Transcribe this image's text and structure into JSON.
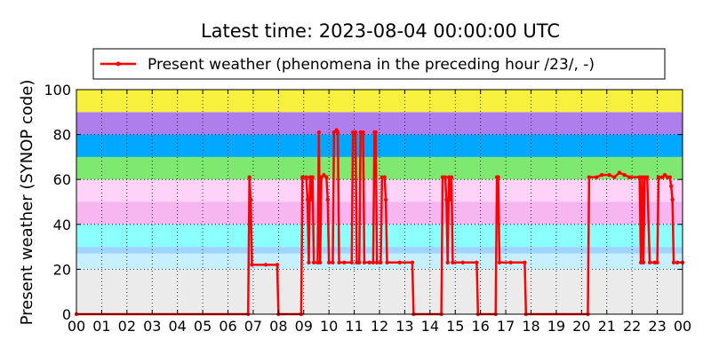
{
  "chart_data": {
    "type": "line",
    "title": "Latest time: 2023-08-04 00:00:00 UTC",
    "ylabel": "Present weather (SYNOP code)",
    "xlabel": "",
    "x_tick_labels": [
      "00",
      "01",
      "02",
      "03",
      "04",
      "05",
      "06",
      "07",
      "08",
      "09",
      "10",
      "11",
      "12",
      "13",
      "14",
      "15",
      "16",
      "17",
      "18",
      "19",
      "20",
      "21",
      "22",
      "23",
      "00"
    ],
    "y_ticks": [
      0,
      20,
      40,
      60,
      80,
      100
    ],
    "ylim": [
      0,
      100
    ],
    "xlim": [
      0,
      24
    ],
    "x_unit": "hours UTC",
    "grid": true,
    "legend_placement": "top-center",
    "line_color": "#ff0000",
    "bands": [
      {
        "from": 0,
        "to": 20,
        "color": "#ebebeb"
      },
      {
        "from": 20,
        "to": 27,
        "color": "#c6f0ff"
      },
      {
        "from": 27,
        "to": 30,
        "color": "#9ed6ff"
      },
      {
        "from": 30,
        "to": 40,
        "color": "#8cffff"
      },
      {
        "from": 40,
        "to": 50,
        "color": "#f7b6ef"
      },
      {
        "from": 50,
        "to": 60,
        "color": "#ffd2fa"
      },
      {
        "from": 60,
        "to": 70,
        "color": "#7ee870"
      },
      {
        "from": 70,
        "to": 80,
        "color": "#00a8ff"
      },
      {
        "from": 80,
        "to": 90,
        "color": "#ae7eed"
      },
      {
        "from": 90,
        "to": 100,
        "color": "#f7f03c"
      }
    ],
    "series": [
      {
        "name": "Present weather (phenomena in the preceding hour /23/, -)",
        "points": [
          [
            0,
            0
          ],
          [
            6.8,
            0
          ],
          [
            6.85,
            61
          ],
          [
            6.9,
            51
          ],
          [
            6.95,
            22
          ],
          [
            7.5,
            22
          ],
          [
            7.95,
            22
          ],
          [
            8.0,
            0
          ],
          [
            8.9,
            0
          ],
          [
            8.95,
            61
          ],
          [
            9.1,
            61
          ],
          [
            9.15,
            51
          ],
          [
            9.2,
            23
          ],
          [
            9.25,
            61
          ],
          [
            9.3,
            51
          ],
          [
            9.35,
            61
          ],
          [
            9.4,
            23
          ],
          [
            9.55,
            23
          ],
          [
            9.6,
            81
          ],
          [
            9.65,
            23
          ],
          [
            9.7,
            61
          ],
          [
            9.8,
            62
          ],
          [
            9.9,
            61
          ],
          [
            9.95,
            51
          ],
          [
            10.0,
            23
          ],
          [
            10.15,
            23
          ],
          [
            10.2,
            81
          ],
          [
            10.3,
            82
          ],
          [
            10.35,
            81
          ],
          [
            10.4,
            23
          ],
          [
            10.6,
            23
          ],
          [
            10.9,
            23
          ],
          [
            10.95,
            81
          ],
          [
            11.05,
            81
          ],
          [
            11.1,
            23
          ],
          [
            11.2,
            23
          ],
          [
            11.25,
            81
          ],
          [
            11.35,
            81
          ],
          [
            11.4,
            23
          ],
          [
            11.6,
            23
          ],
          [
            11.75,
            23
          ],
          [
            11.8,
            81
          ],
          [
            11.85,
            81
          ],
          [
            11.9,
            23
          ],
          [
            12.05,
            23
          ],
          [
            12.1,
            61
          ],
          [
            12.2,
            61
          ],
          [
            12.25,
            51
          ],
          [
            12.3,
            23
          ],
          [
            12.8,
            23
          ],
          [
            13.3,
            23
          ],
          [
            13.35,
            0
          ],
          [
            14.45,
            0
          ],
          [
            14.5,
            61
          ],
          [
            14.6,
            61
          ],
          [
            14.65,
            51
          ],
          [
            14.7,
            23
          ],
          [
            14.75,
            61
          ],
          [
            14.8,
            51
          ],
          [
            14.85,
            61
          ],
          [
            14.9,
            23
          ],
          [
            15.3,
            23
          ],
          [
            15.85,
            23
          ],
          [
            15.9,
            0
          ],
          [
            16.6,
            0
          ],
          [
            16.65,
            61
          ],
          [
            16.7,
            61
          ],
          [
            16.75,
            23
          ],
          [
            17.2,
            23
          ],
          [
            17.75,
            23
          ],
          [
            17.8,
            0
          ],
          [
            20.25,
            0
          ],
          [
            20.3,
            61
          ],
          [
            20.6,
            61
          ],
          [
            20.8,
            62
          ],
          [
            21.1,
            62
          ],
          [
            21.3,
            61
          ],
          [
            21.5,
            63
          ],
          [
            21.7,
            62
          ],
          [
            21.9,
            61
          ],
          [
            22.3,
            61
          ],
          [
            22.35,
            23
          ],
          [
            22.4,
            61
          ],
          [
            22.45,
            23
          ],
          [
            22.5,
            61
          ],
          [
            22.6,
            61
          ],
          [
            22.7,
            23
          ],
          [
            22.9,
            23
          ],
          [
            23.0,
            23
          ],
          [
            23.05,
            61
          ],
          [
            23.2,
            61
          ],
          [
            23.3,
            62
          ],
          [
            23.4,
            61
          ],
          [
            23.5,
            61
          ],
          [
            23.55,
            57
          ],
          [
            23.6,
            51
          ],
          [
            23.65,
            23
          ],
          [
            23.8,
            23
          ],
          [
            24.0,
            23
          ]
        ]
      }
    ]
  }
}
